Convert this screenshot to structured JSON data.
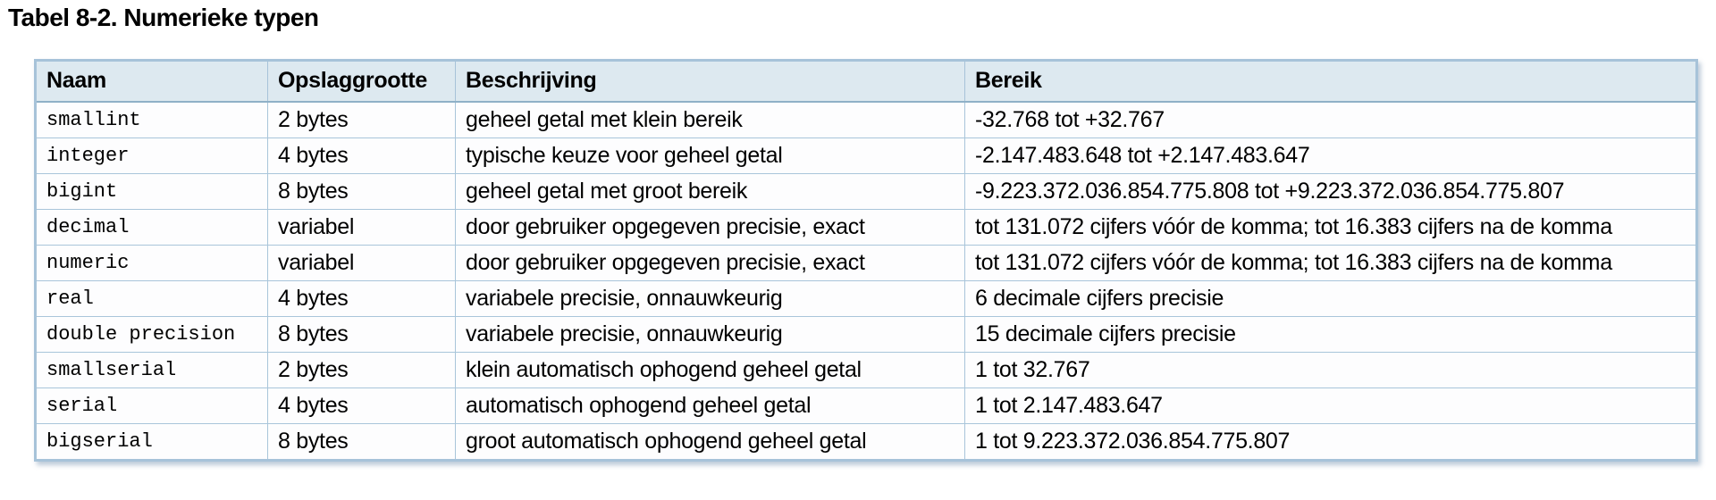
{
  "title": "Tabel 8-2. Numerieke typen",
  "table": {
    "columns": [
      {
        "key": "naam",
        "label": "Naam"
      },
      {
        "key": "opslaggrootte",
        "label": "Opslaggrootte"
      },
      {
        "key": "beschrijving",
        "label": "Beschrijving"
      },
      {
        "key": "bereik",
        "label": "Bereik"
      }
    ],
    "rows": [
      {
        "naam": "smallint",
        "opslaggrootte": "2 bytes",
        "beschrijving": "geheel getal met klein bereik",
        "bereik": "-32.768 tot +32.767"
      },
      {
        "naam": "integer",
        "opslaggrootte": "4 bytes",
        "beschrijving": "typische keuze voor geheel getal",
        "bereik": "-2.147.483.648 tot +2.147.483.647"
      },
      {
        "naam": "bigint",
        "opslaggrootte": "8 bytes",
        "beschrijving": "geheel getal met groot bereik",
        "bereik": "-9.223.372.036.854.775.808 tot +9.223.372.036.854.775.807"
      },
      {
        "naam": "decimal",
        "opslaggrootte": "variabel",
        "beschrijving": "door gebruiker opgegeven precisie, exact",
        "bereik": "tot 131.072 cijfers vóór de komma; tot 16.383 cijfers na de komma"
      },
      {
        "naam": "numeric",
        "opslaggrootte": "variabel",
        "beschrijving": "door gebruiker opgegeven precisie, exact",
        "bereik": "tot 131.072 cijfers vóór de komma; tot 16.383 cijfers na de komma"
      },
      {
        "naam": "real",
        "opslaggrootte": "4 bytes",
        "beschrijving": "variabele precisie, onnauwkeurig",
        "bereik": "6 decimale cijfers precisie"
      },
      {
        "naam": "double precision",
        "opslaggrootte": "8 bytes",
        "beschrijving": "variabele precisie, onnauwkeurig",
        "bereik": "15 decimale cijfers precisie"
      },
      {
        "naam": "smallserial",
        "opslaggrootte": "2 bytes",
        "beschrijving": "klein automatisch ophogend geheel getal",
        "bereik": "1 tot 32.767"
      },
      {
        "naam": "serial",
        "opslaggrootte": "4 bytes",
        "beschrijving": "automatisch ophogend geheel getal",
        "bereik": "1 tot 2.147.483.647"
      },
      {
        "naam": "bigserial",
        "opslaggrootte": "8 bytes",
        "beschrijving": "groot automatisch ophogend geheel getal",
        "bereik": "1 tot 9.223.372.036.854.775.807"
      }
    ]
  },
  "colors": {
    "header_bg": "#dde9f0",
    "cell_bg": "#fdfdfe",
    "border_outer": "#a7c3d9",
    "border_inner": "#a9c5da",
    "text": "#000000"
  }
}
